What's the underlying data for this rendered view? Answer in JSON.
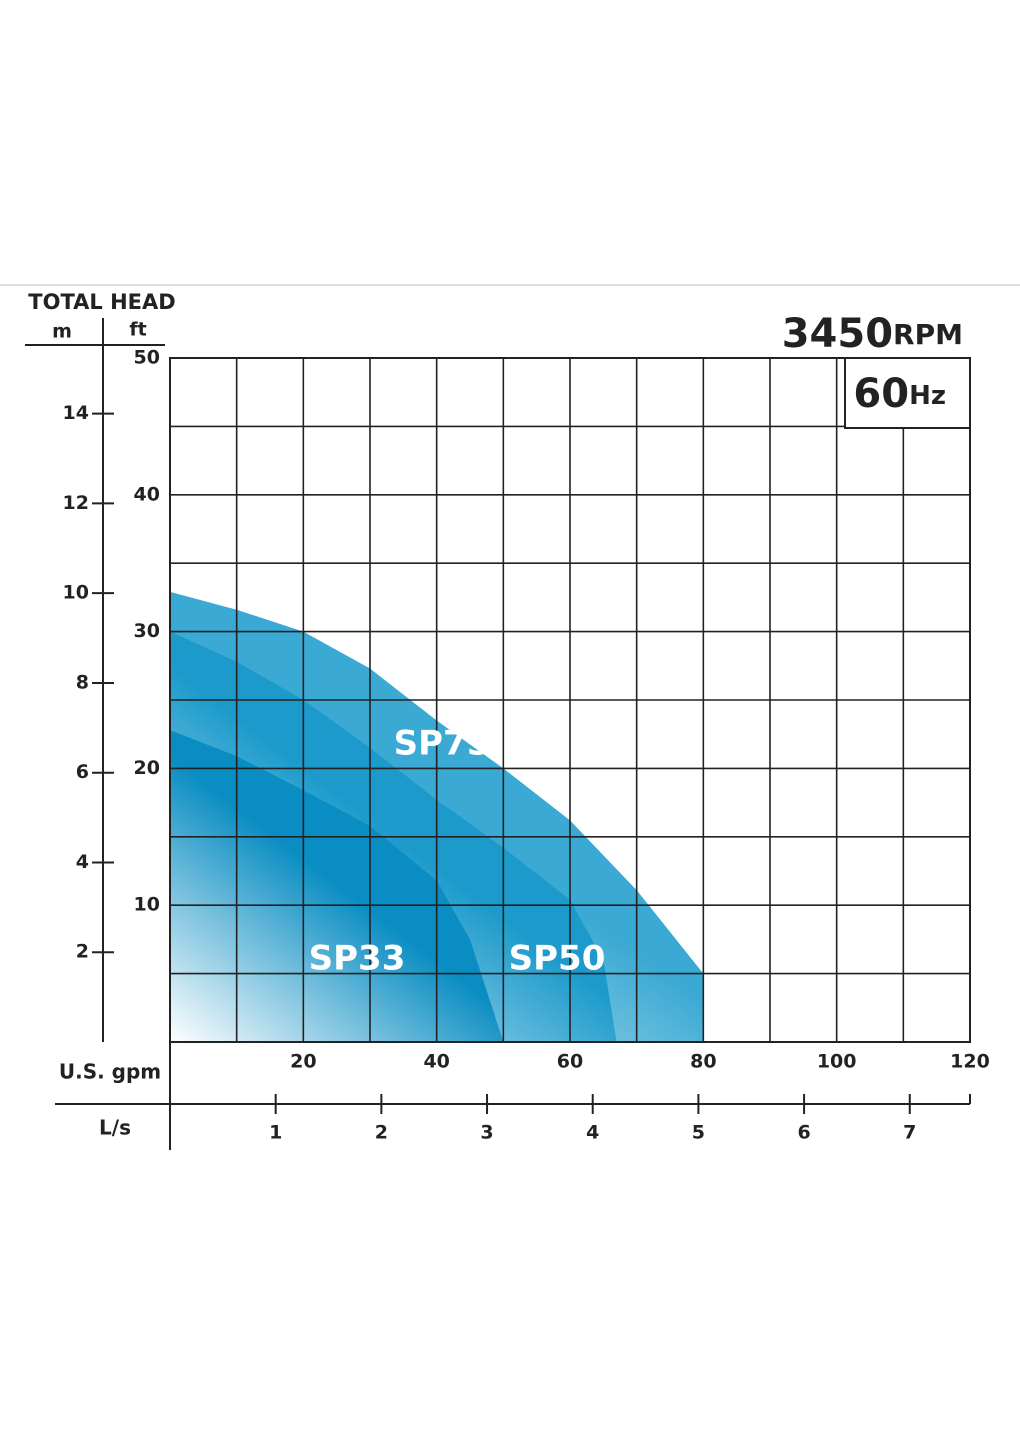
{
  "chart_data": {
    "type": "area",
    "y_axis_title": "TOTAL HEAD",
    "y_unit_label": "ft",
    "y2_unit_label": "m",
    "x_axis_label": "U.S. gpm",
    "x2_axis_label": "L/s",
    "speed": {
      "number": "3450",
      "unit": "RPM"
    },
    "frequency": {
      "number": "60",
      "unit": "Hz"
    },
    "xlim": [
      0,
      120
    ],
    "xticks": [
      20,
      40,
      60,
      80,
      100,
      120
    ],
    "xgrid": [
      0,
      10,
      20,
      30,
      40,
      50,
      60,
      70,
      80,
      90,
      100,
      110,
      120
    ],
    "x2lim": [
      0,
      7.57
    ],
    "x2ticks": [
      1,
      2,
      3,
      4,
      5,
      6,
      7
    ],
    "ylim": [
      0,
      50
    ],
    "yticks": [
      10,
      20,
      30,
      40,
      50
    ],
    "ygrid": [
      0,
      5,
      10,
      15,
      20,
      25,
      30,
      35,
      40,
      45,
      50
    ],
    "y2lim": [
      0,
      15.24
    ],
    "y2ticks": [
      2,
      4,
      6,
      8,
      10,
      12,
      14
    ],
    "grid": true,
    "series": [
      {
        "name": "SP75",
        "color": "#3aa9d3",
        "x": [
          0,
          10,
          20,
          30,
          40,
          50,
          60,
          70,
          80
        ],
        "values": [
          32.9,
          31.6,
          30,
          27.3,
          23.5,
          20,
          16.2,
          11.1,
          5
        ]
      },
      {
        "name": "SP50",
        "color": "#1b9acb",
        "x": [
          0,
          10,
          20,
          30,
          40,
          50,
          60,
          65,
          67
        ],
        "values": [
          30,
          27.8,
          25,
          21.5,
          17.7,
          14.2,
          10.4,
          6,
          0
        ]
      },
      {
        "name": "SP33",
        "color": "#0a8dc2",
        "x": [
          0,
          10,
          20,
          30,
          40,
          45,
          50
        ],
        "values": [
          22.8,
          20.9,
          18.4,
          15.8,
          11.8,
          7.5,
          0
        ]
      }
    ]
  }
}
